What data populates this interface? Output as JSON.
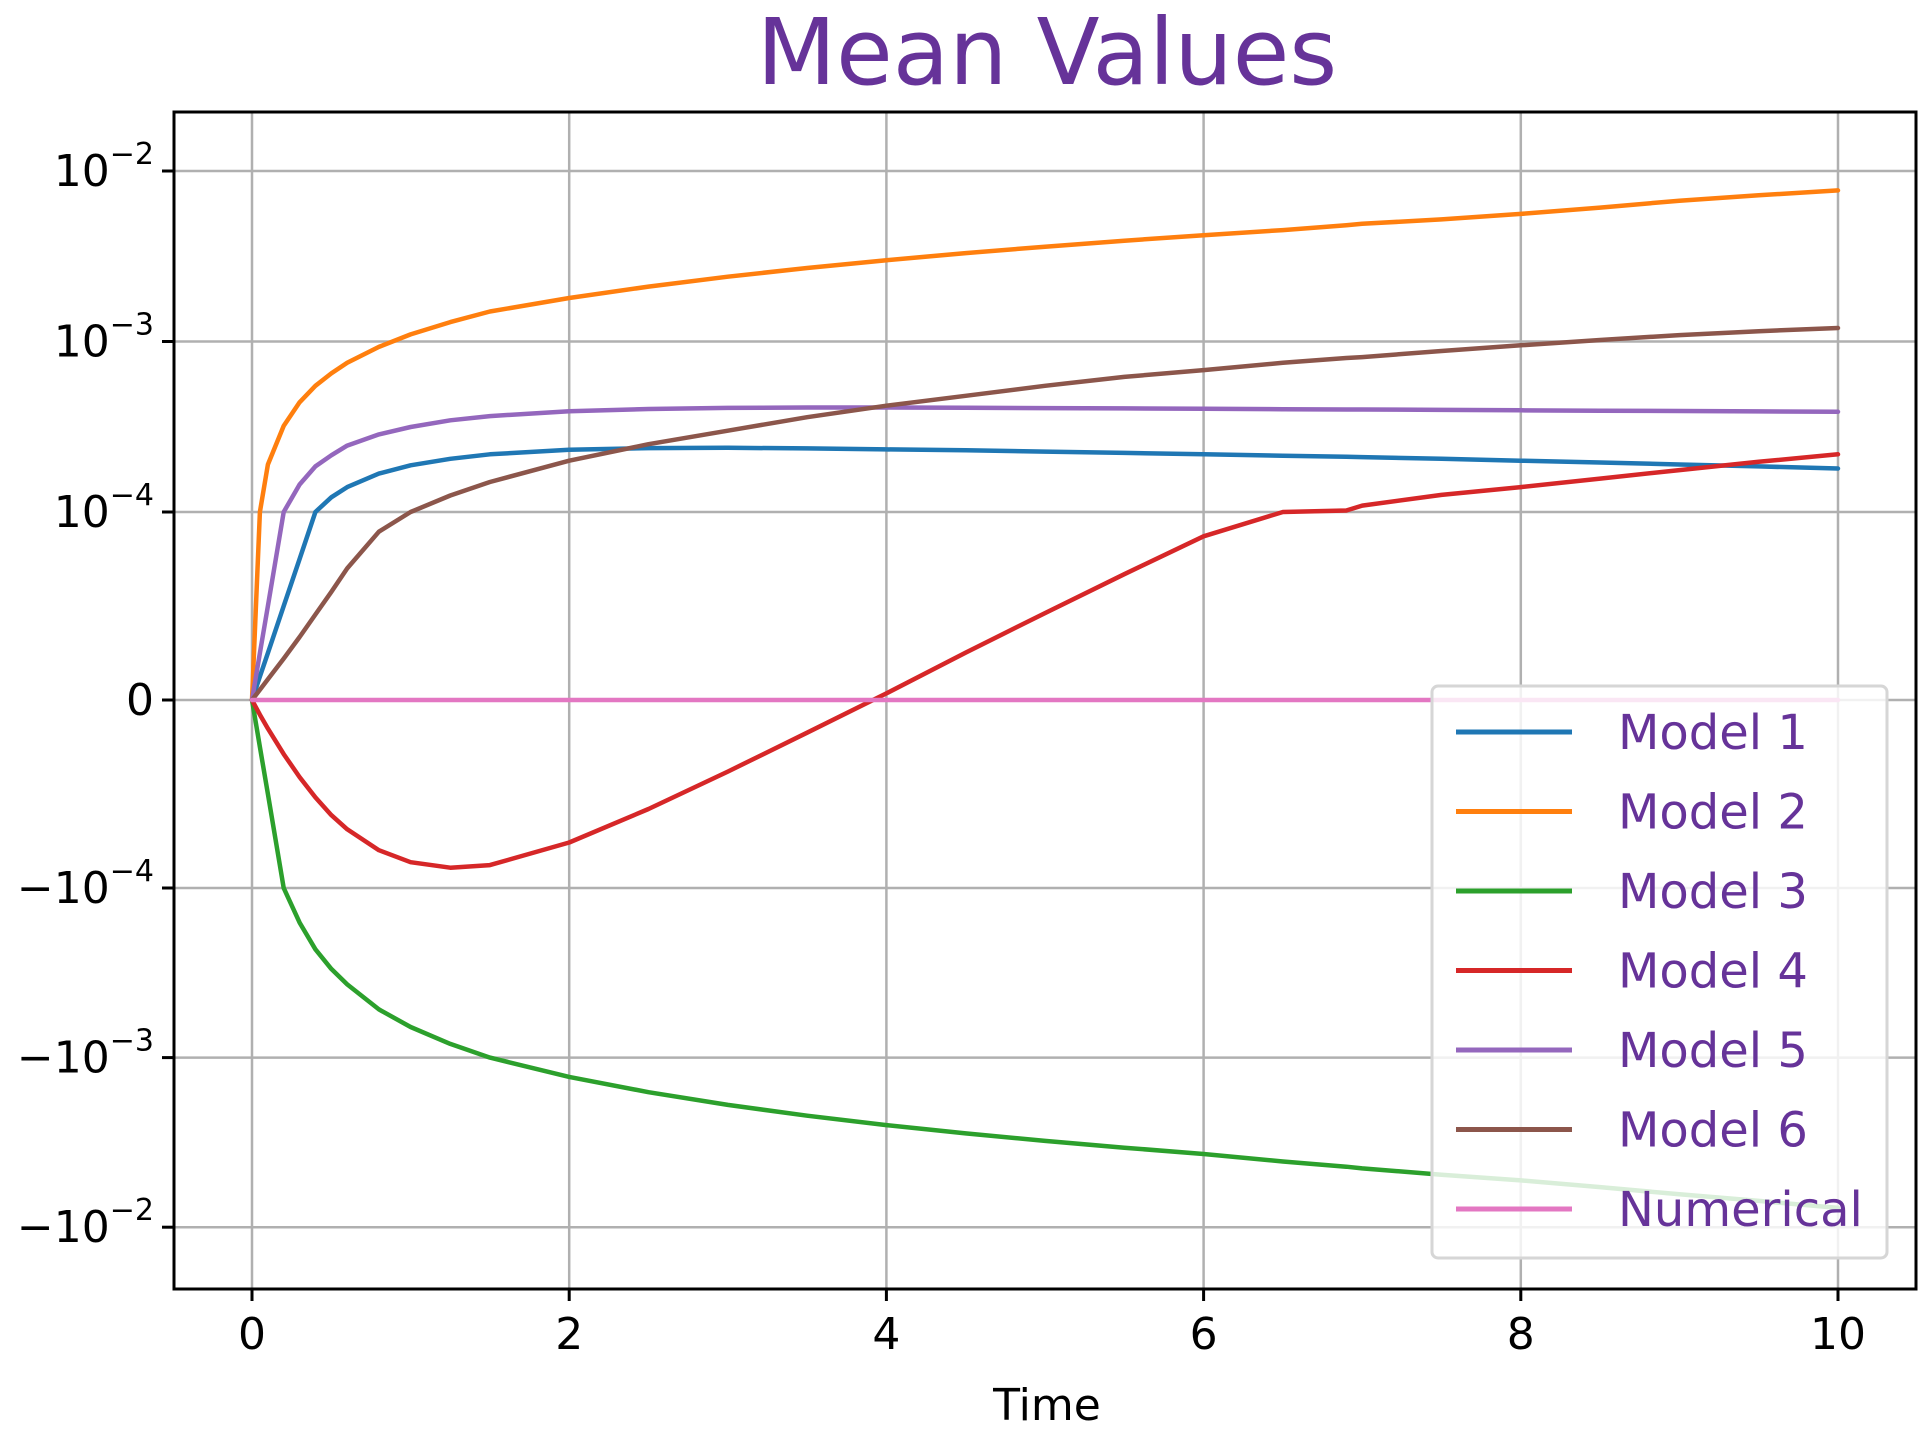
{
  "chart_data": {
    "type": "line",
    "title": "Mean Values",
    "xlabel": "Time",
    "ylabel": "",
    "xlim": [
      -0.5,
      10.5
    ],
    "yscale": "symlog",
    "grid": true,
    "legend_position": "lower-right",
    "x_ticks": [
      {
        "value": 0,
        "label": "0"
      },
      {
        "value": 2,
        "label": "2"
      },
      {
        "value": 4,
        "label": "4"
      },
      {
        "value": 6,
        "label": "6"
      },
      {
        "value": 8,
        "label": "8"
      },
      {
        "value": 10,
        "label": "10"
      }
    ],
    "y_ticks": [
      {
        "value": 0.01,
        "base": "10",
        "exp": "−2"
      },
      {
        "value": 0.001,
        "base": "10",
        "exp": "−3"
      },
      {
        "value": 0.0001,
        "base": "10",
        "exp": "−4"
      },
      {
        "value": 0,
        "base": "0",
        "exp": ""
      },
      {
        "value": -0.0001,
        "base": "−10",
        "exp": "−4"
      },
      {
        "value": -0.001,
        "base": "−10",
        "exp": "−3"
      },
      {
        "value": -0.01,
        "base": "−10",
        "exp": "−2"
      }
    ],
    "x": [
      0,
      0.05,
      0.1,
      0.2,
      0.3,
      0.4,
      0.5,
      0.6,
      0.8,
      1,
      1.25,
      1.5,
      2,
      2.5,
      3,
      3.5,
      4,
      4.5,
      5,
      5.5,
      6,
      6.5,
      6.9,
      7,
      7.5,
      8,
      8.5,
      9,
      9.5,
      10
    ],
    "series": [
      {
        "name": "Model 1",
        "color": "#1f77b4",
        "values": [
          0,
          1.25e-05,
          2.5e-05,
          5e-05,
          7.5e-05,
          0.0001,
          0.000122,
          0.00014,
          0.000168,
          0.000188,
          0.000205,
          0.000218,
          0.000232,
          0.000237,
          0.000238,
          0.000236,
          0.000233,
          0.00023,
          0.000226,
          0.000222,
          0.000218,
          0.000214,
          0.000211,
          0.00021,
          0.000205,
          0.0002,
          0.000195,
          0.00019,
          0.000185,
          0.00018
        ]
      },
      {
        "name": "Model 2",
        "color": "#ff7f0e",
        "values": [
          0,
          0.0001,
          0.00019,
          0.00032,
          0.00044,
          0.00055,
          0.00065,
          0.00075,
          0.00093,
          0.0011,
          0.0013,
          0.0015,
          0.0018,
          0.0021,
          0.0024,
          0.0027,
          0.003,
          0.0033,
          0.0036,
          0.0039,
          0.0042,
          0.0045,
          0.0048,
          0.0049,
          0.0052,
          0.0056,
          0.0061,
          0.0067,
          0.0072,
          0.0077
        ]
      },
      {
        "name": "Model 3",
        "color": "#2ca02c",
        "values": [
          0,
          -2.5e-05,
          -5e-05,
          -0.0001,
          -0.00016,
          -0.00023,
          -0.0003,
          -0.00037,
          -0.00052,
          -0.00066,
          -0.00083,
          -0.001,
          -0.0013,
          -0.0016,
          -0.0019,
          -0.0022,
          -0.0025,
          -0.0028,
          -0.0031,
          -0.0034,
          -0.0037,
          -0.0041,
          -0.0044,
          -0.0045,
          -0.0049,
          -0.0053,
          -0.0058,
          -0.0064,
          -0.007,
          -0.0077
        ]
      },
      {
        "name": "Model 4",
        "color": "#d62728",
        "values": [
          0,
          -7.8e-06,
          -1.52e-05,
          -2.88e-05,
          -4.1e-05,
          -5.18e-05,
          -6.12e-05,
          -6.88e-05,
          -7.99e-05,
          -8.63e-05,
          -8.92e-05,
          -8.78e-05,
          -7.58e-05,
          -5.8e-05,
          -3.81e-05,
          -1.74e-05,
          3.5e-06,
          2.52e-05,
          4.62e-05,
          6.69e-05,
          8.71e-05,
          0.0001,
          0.000102,
          0.000109,
          0.000126,
          0.00014,
          0.000157,
          0.000176,
          0.000197,
          0.000218
        ]
      },
      {
        "name": "Model 5",
        "color": "#9467bd",
        "values": [
          0,
          2.5e-05,
          5e-05,
          0.0001,
          0.000145,
          0.000185,
          0.000215,
          0.000245,
          0.000285,
          0.000315,
          0.000345,
          0.000365,
          0.00039,
          0.000402,
          0.000408,
          0.00041,
          0.00041,
          0.000409,
          0.000407,
          0.000405,
          0.000403,
          0.000401,
          0.000399,
          0.000399,
          0.000397,
          0.000395,
          0.000393,
          0.000391,
          0.000389,
          0.000387
        ]
      },
      {
        "name": "Model 6",
        "color": "#8c564b",
        "values": [
          0,
          5.5e-06,
          1.1e-05,
          2.2e-05,
          3.35e-05,
          4.55e-05,
          5.75e-05,
          7e-05,
          8.95e-05,
          0.0001,
          0.000125,
          0.00015,
          0.0002,
          0.00025,
          0.0003,
          0.00036,
          0.00042,
          0.00048,
          0.00055,
          0.00062,
          0.00068,
          0.00075,
          0.0008,
          0.00081,
          0.00088,
          0.00095,
          0.00102,
          0.00109,
          0.00115,
          0.0012
        ]
      },
      {
        "name": "Numerical",
        "color": "#e377c2",
        "values": [
          0,
          0,
          0,
          0,
          0,
          0,
          0,
          0,
          0,
          0,
          0,
          0,
          0,
          0,
          0,
          0,
          0,
          0,
          0,
          0,
          0,
          0,
          0,
          0,
          0,
          0,
          0,
          0,
          0,
          0
        ]
      }
    ]
  }
}
